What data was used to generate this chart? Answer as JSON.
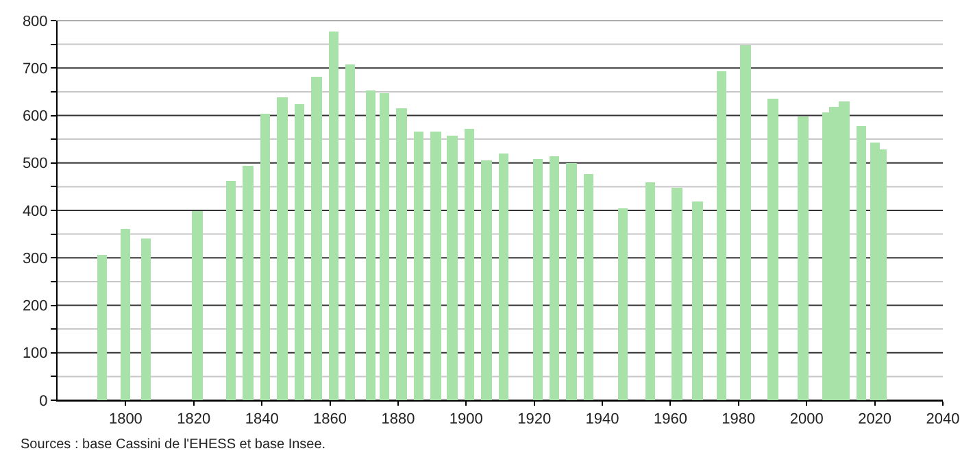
{
  "chart_data": {
    "type": "bar",
    "x": [
      1793,
      1800,
      1806,
      1821,
      1831,
      1836,
      1841,
      1846,
      1851,
      1856,
      1861,
      1866,
      1872,
      1876,
      1881,
      1886,
      1891,
      1896,
      1901,
      1906,
      1911,
      1921,
      1926,
      1931,
      1936,
      1946,
      1954,
      1962,
      1968,
      1975,
      1982,
      1990,
      1999,
      2006,
      2008,
      2011,
      2016,
      2020,
      2022
    ],
    "values": [
      306,
      361,
      341,
      399,
      461,
      494,
      604,
      639,
      623,
      681,
      777,
      709,
      653,
      646,
      614,
      567,
      565,
      556,
      573,
      505,
      520,
      508,
      513,
      499,
      476,
      403,
      458,
      449,
      420,
      692,
      747,
      634,
      597,
      607,
      618,
      630,
      577,
      543,
      528
    ],
    "color": "#a8e2a8",
    "xlim": [
      1780,
      2040
    ],
    "xticks": [
      1800,
      1820,
      1840,
      1860,
      1880,
      1900,
      1920,
      1940,
      1960,
      1980,
      2000,
      2020,
      2040
    ],
    "ylim": [
      0,
      800
    ],
    "yticks": [
      0,
      {
        "value": 50,
        "label": null
      },
      100,
      {
        "value": 150,
        "label": null
      },
      200,
      {
        "value": 250,
        "label": null
      },
      300,
      {
        "value": 350,
        "label": null
      },
      400,
      {
        "value": 450,
        "label": null
      },
      500,
      {
        "value": 550,
        "label": null
      },
      600,
      {
        "value": 650,
        "label": null
      },
      700,
      {
        "value": 750,
        "label": null
      },
      800
    ],
    "grid": "y",
    "annotations": [
      "Sources : base Cassini de l'EHESS et base Insee."
    ]
  }
}
